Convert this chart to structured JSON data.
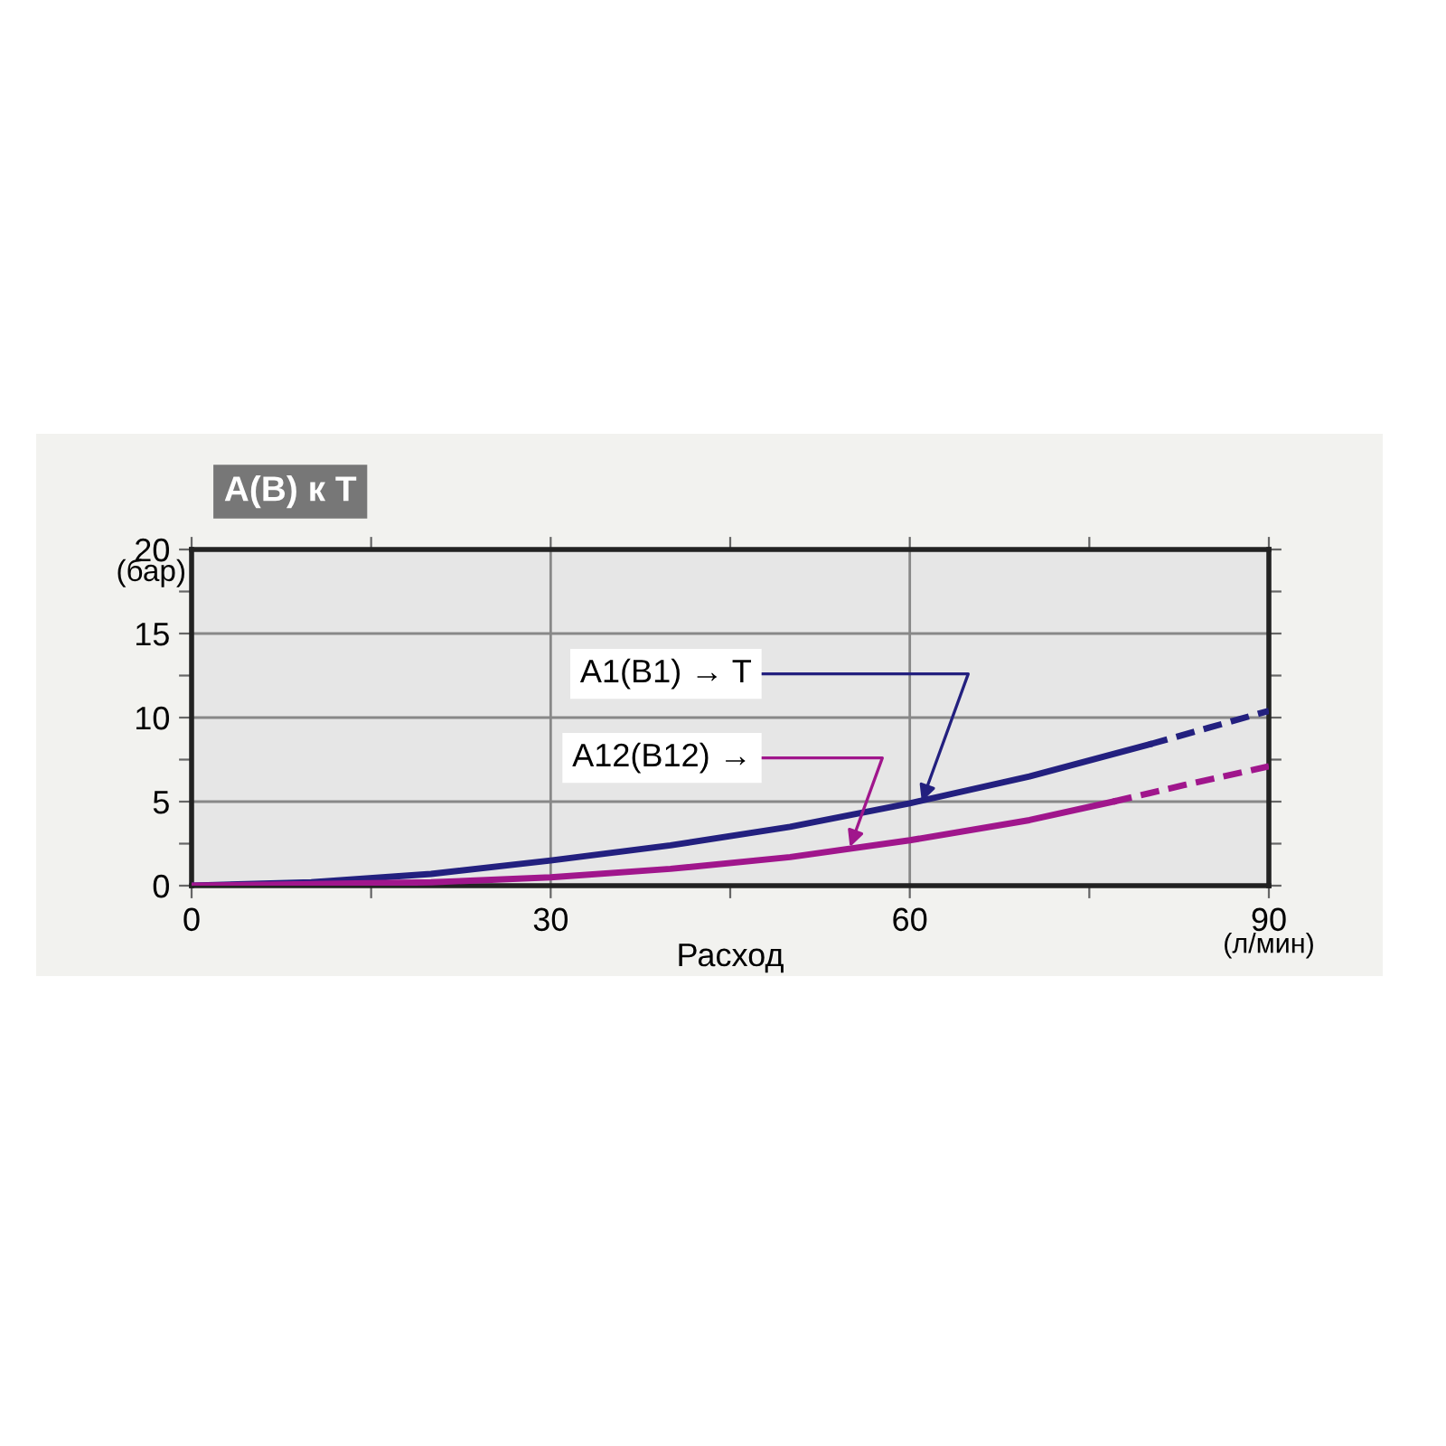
{
  "chart_data": {
    "type": "line",
    "title": "A(B) к T",
    "xlabel": "Расход",
    "ylabel": "(бар)",
    "series": [
      {
        "color": "#23207f",
        "x": [
          0,
          10,
          20,
          30,
          40,
          50,
          60,
          70,
          80
        ],
        "values": [
          0,
          0.2,
          0.7,
          1.5,
          2.4,
          3.5,
          4.9,
          6.5,
          8.4
        ],
        "line_style": "solid"
      },
      {
        "color": "#23207f",
        "x": [
          80,
          85,
          90
        ],
        "values": [
          8.4,
          9.4,
          10.4
        ],
        "line_style": "dashed"
      },
      {
        "color": "#a0168c",
        "x": [
          0,
          10,
          20,
          30,
          40,
          50,
          60,
          70,
          77
        ],
        "values": [
          0,
          0.1,
          0.2,
          0.5,
          1.0,
          1.7,
          2.7,
          3.9,
          5.0
        ],
        "line_style": "solid"
      },
      {
        "color": "#a0168c",
        "x": [
          77,
          83,
          90
        ],
        "values": [
          5.0,
          6.0,
          7.1
        ],
        "line_style": "dashed"
      }
    ],
    "annotations": [
      {
        "text": "A1(B1) → T",
        "x": 61,
        "y": 5.0
      },
      {
        "text": "A12(B12) →",
        "x": 55,
        "y": 2.3
      },
      "(л/мин)"
    ],
    "xlim": [
      0,
      90
    ],
    "ylim": [
      0,
      20
    ],
    "xticks": [
      0,
      {
        "value": 15,
        "label": null
      },
      30,
      {
        "value": 45,
        "label": null
      },
      60,
      {
        "value": 75,
        "label": null
      },
      90
    ],
    "yticks": [
      0,
      {
        "value": 2.5,
        "label": null
      },
      5,
      {
        "value": 7.5,
        "label": null
      },
      10,
      {
        "value": 12.5,
        "label": null
      },
      15,
      {
        "value": 17.5,
        "label": null
      },
      20
    ],
    "grid": true
  }
}
